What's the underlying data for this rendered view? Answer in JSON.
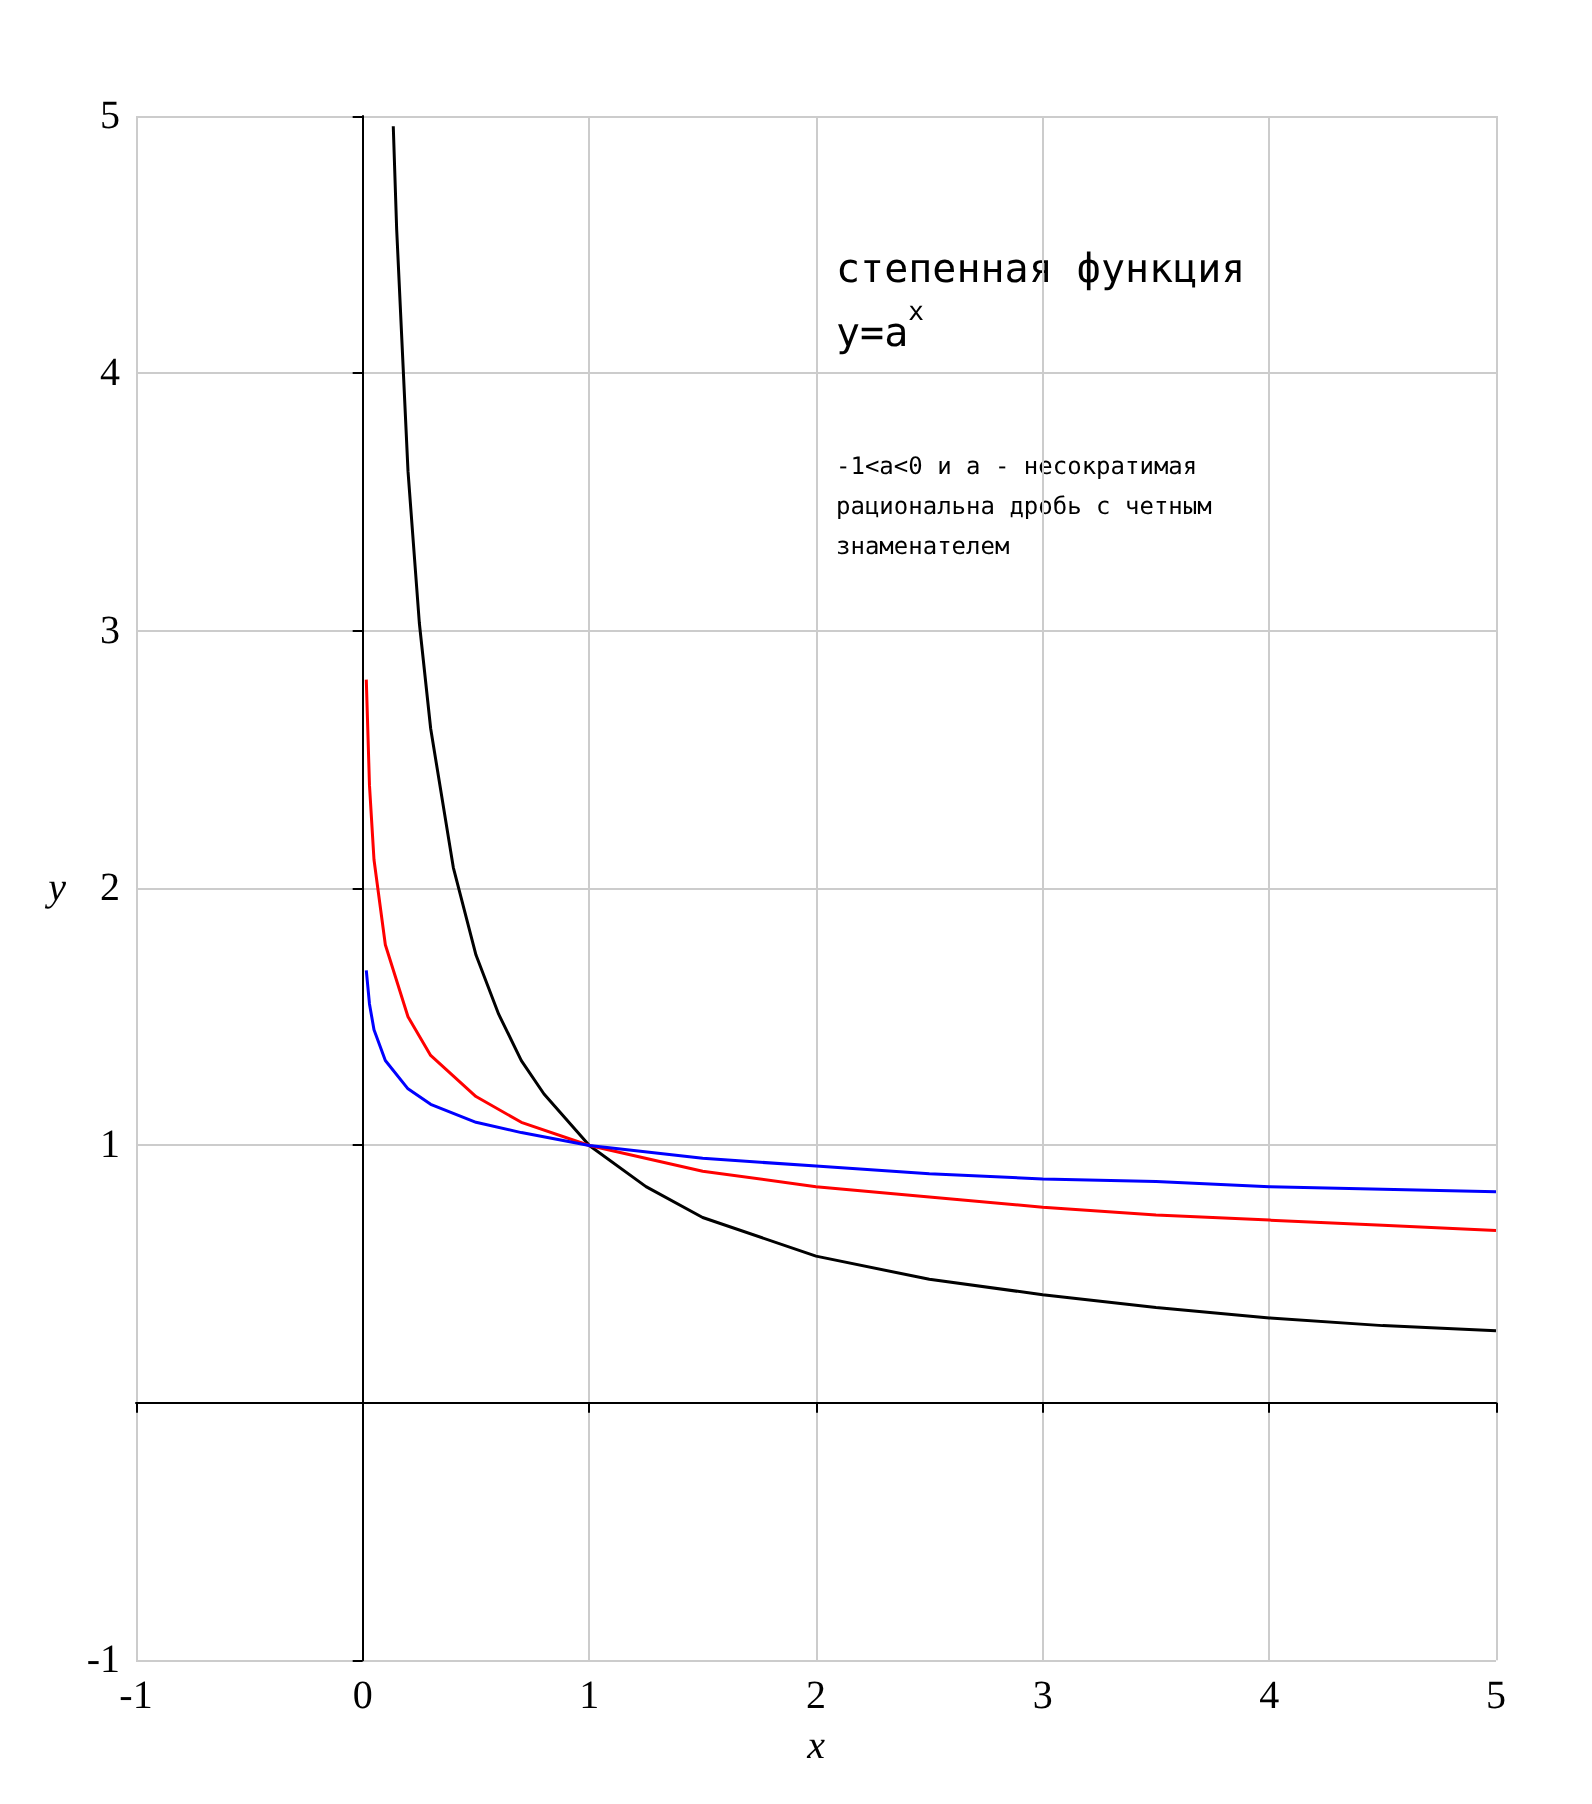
{
  "chart_data": {
    "type": "line",
    "xlabel": "x",
    "ylabel": "y",
    "annotations": [
      "степенная функция y=a$^{x}$",
      "-1<a<0 и a - несократимая рациональна дробь с четным знаменателем"
    ],
    "xlim": [
      -1,
      5
    ],
    "ylim": [
      -1,
      5
    ],
    "xticks": [
      -1,
      0,
      1,
      2,
      3,
      4,
      5
    ],
    "yticks": [
      -1,
      1,
      2,
      3,
      4,
      5
    ],
    "grid": true,
    "marker": "none",
    "line_style": "solid",
    "series": [
      {
        "color": "#000000",
        "x": [
          0.135,
          0.15,
          0.2,
          0.25,
          0.3,
          0.4,
          0.5,
          0.6,
          0.7,
          0.8,
          1,
          1.25,
          1.5,
          2,
          2.5,
          3,
          3.5,
          4,
          4.5,
          5
        ],
        "values": [
          4.96,
          4.56,
          3.62,
          3.03,
          2.62,
          2.08,
          1.74,
          1.51,
          1.33,
          1.2,
          1,
          0.84,
          0.72,
          0.57,
          0.48,
          0.42,
          0.37,
          0.33,
          0.3,
          0.28
        ]
      },
      {
        "color": "#ff0000",
        "x": [
          0.016,
          0.03,
          0.05,
          0.1,
          0.2,
          0.3,
          0.5,
          0.7,
          1,
          1.5,
          2,
          2.5,
          3,
          3.5,
          4,
          4.5,
          5
        ],
        "values": [
          2.81,
          2.4,
          2.11,
          1.78,
          1.5,
          1.35,
          1.19,
          1.09,
          1,
          0.9,
          0.84,
          0.8,
          0.76,
          0.73,
          0.71,
          0.69,
          0.67
        ]
      },
      {
        "color": "#0000ff",
        "x": [
          0.016,
          0.03,
          0.05,
          0.1,
          0.2,
          0.3,
          0.5,
          0.7,
          1,
          1.5,
          2,
          2.5,
          3,
          3.5,
          4,
          4.5,
          5
        ],
        "values": [
          1.68,
          1.55,
          1.45,
          1.33,
          1.22,
          1.16,
          1.09,
          1.05,
          1,
          0.95,
          0.92,
          0.89,
          0.87,
          0.86,
          0.84,
          0.83,
          0.82
        ]
      }
    ]
  }
}
